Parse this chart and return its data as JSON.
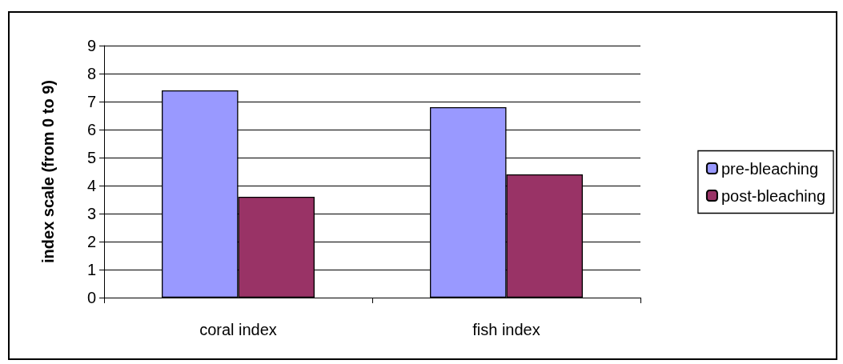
{
  "chart_data": {
    "type": "bar",
    "ylabel": "index scale (from 0 to 9)",
    "categories": [
      "coral index",
      "fish index"
    ],
    "series": [
      {
        "name": "pre-bleaching",
        "color": "#9999ff",
        "values": [
          7.4,
          6.8
        ]
      },
      {
        "name": "post-bleaching",
        "color": "#993366",
        "values": [
          3.6,
          4.4
        ]
      }
    ],
    "ylim": [
      0,
      9
    ],
    "yticks": [
      0,
      1,
      2,
      3,
      4,
      5,
      6,
      7,
      8,
      9
    ],
    "grid": "y",
    "legend": "right"
  }
}
